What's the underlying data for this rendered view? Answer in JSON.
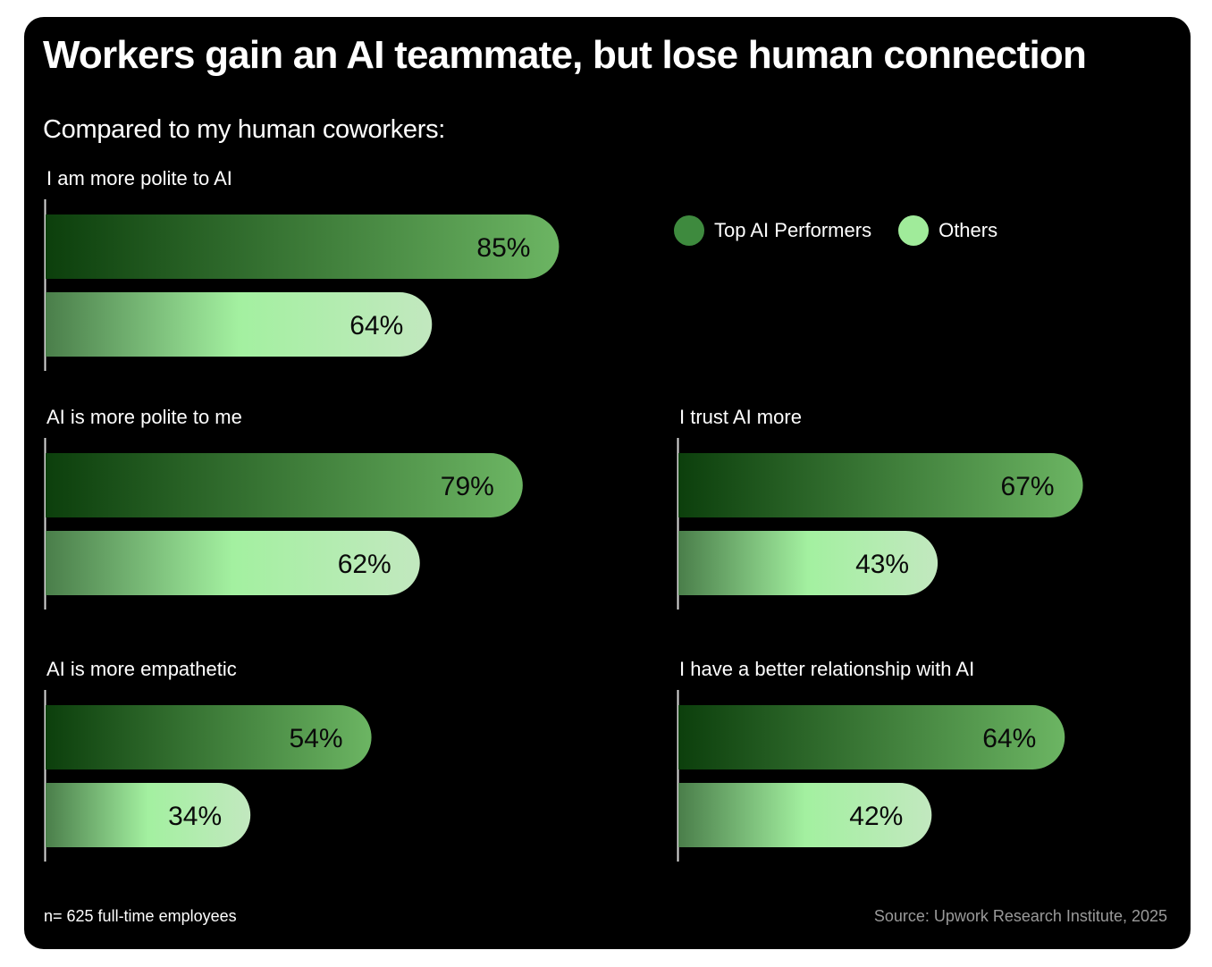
{
  "header": {
    "title": "Workers gain an AI teammate, but lose human connection",
    "subtitle": "Compared to my human coworkers:"
  },
  "footer": {
    "sample": "n= 625 full-time employees",
    "source": "Source: Upwork Research Institute, 2025"
  },
  "legend": [
    {
      "name": "Top AI Performers",
      "color": "#3e8a3e"
    },
    {
      "name": "Others",
      "color": "#a0eb9a"
    }
  ],
  "colors": {
    "top_dark": "#0c3f0c",
    "top_light": "#6cb563",
    "others_dark": "#4a7e4a",
    "others_mid": "#a3f0a0",
    "others_light": "#c2e8bf",
    "background": "#000000"
  },
  "chart_data": {
    "type": "bar",
    "orientation": "horizontal",
    "title": "Workers gain an AI teammate, but lose human connection",
    "subtitle": "Compared to my human coworkers:",
    "unit": "%",
    "xlim": [
      0,
      100
    ],
    "series_names": [
      "Top AI Performers",
      "Others"
    ],
    "groups": [
      {
        "label": "I am more polite to AI",
        "values": [
          85,
          64
        ],
        "value_labels": [
          "85%",
          "64%"
        ]
      },
      {
        "label": "AI is more polite to me",
        "values": [
          79,
          62
        ],
        "value_labels": [
          "79%",
          "62%"
        ]
      },
      {
        "label": "I trust AI more",
        "values": [
          67,
          43
        ],
        "value_labels": [
          "67%",
          "43%"
        ]
      },
      {
        "label": "AI is more empathetic",
        "values": [
          54,
          34
        ],
        "value_labels": [
          "54%",
          "34%"
        ]
      },
      {
        "label": "I have a better relationship with AI",
        "values": [
          64,
          42
        ],
        "value_labels": [
          "64%",
          "42%"
        ]
      }
    ]
  }
}
